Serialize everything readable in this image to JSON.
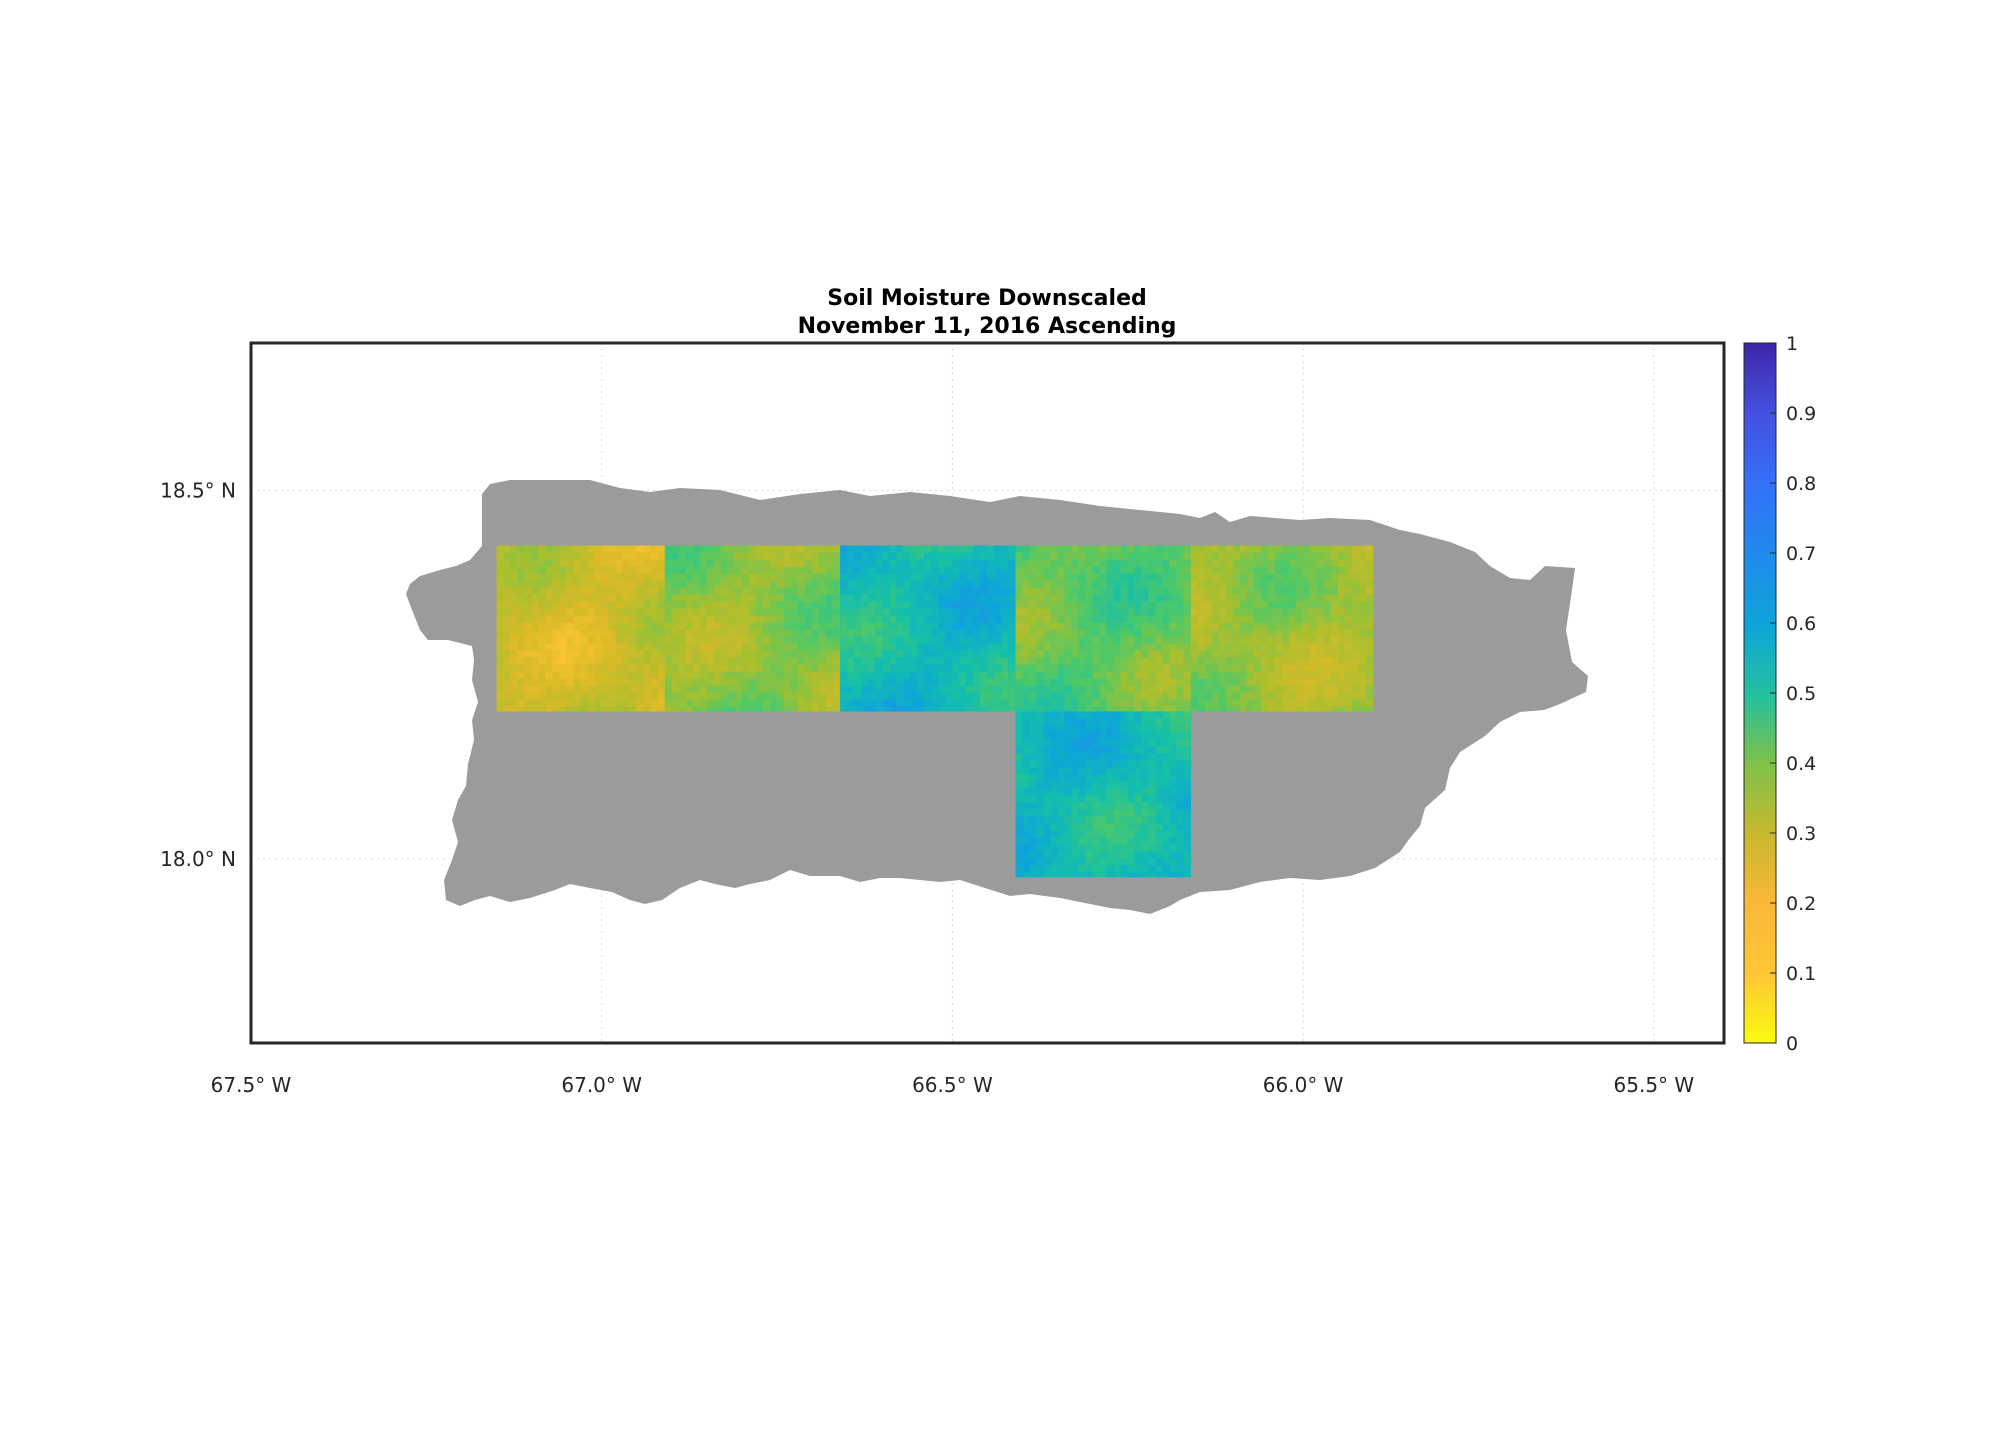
{
  "title": "Soil Moisture Downscaled",
  "subtitle": "November 11, 2016 Ascending",
  "map": {
    "lon_range": [
      -67.5,
      -65.4
    ],
    "lat_range": [
      17.75,
      18.7
    ],
    "x_ticks": [
      {
        "value": -67.5,
        "label": "67.5",
        "hemi": "W"
      },
      {
        "value": -67.0,
        "label": "67.0",
        "hemi": "W"
      },
      {
        "value": -66.5,
        "label": "66.5",
        "hemi": "W"
      },
      {
        "value": -66.0,
        "label": "66.0",
        "hemi": "W"
      },
      {
        "value": -65.5,
        "label": "65.5",
        "hemi": "W"
      }
    ],
    "y_ticks": [
      {
        "value": 18.5,
        "label": "18.5",
        "hemi": "N"
      },
      {
        "value": 18.0,
        "label": "18.0",
        "hemi": "N"
      }
    ],
    "grid": true,
    "land_color": "#9b9b9b",
    "data_tiles": [
      {
        "lon": [
          -67.15,
          -66.91
        ],
        "lat": [
          18.2,
          18.425
        ],
        "mean": 0.23
      },
      {
        "lon": [
          -66.91,
          -66.66
        ],
        "lat": [
          18.2,
          18.425
        ],
        "mean": 0.33
      },
      {
        "lon": [
          -66.66,
          -66.41
        ],
        "lat": [
          18.2,
          18.425
        ],
        "mean": 0.52
      },
      {
        "lon": [
          -66.41,
          -66.16
        ],
        "lat": [
          18.2,
          18.425
        ],
        "mean": 0.38
      },
      {
        "lon": [
          -66.16,
          -65.9
        ],
        "lat": [
          18.2,
          18.425
        ],
        "mean": 0.31
      },
      {
        "lon": [
          -66.41,
          -66.16
        ],
        "lat": [
          17.975,
          18.2
        ],
        "mean": 0.52
      }
    ]
  },
  "colorbar": {
    "min": 0,
    "max": 1,
    "ticks": [
      "0",
      "0.1",
      "0.2",
      "0.3",
      "0.4",
      "0.5",
      "0.6",
      "0.7",
      "0.8",
      "0.9",
      "1"
    ],
    "colormap": [
      "#f9fb0e",
      "#fec634",
      "#dbba27",
      "#a7bf2f",
      "#4fc967",
      "#14bfaa",
      "#0ea4da",
      "#2c86f4",
      "#3f5ff0",
      "#4933d0",
      "#3e26a8"
    ]
  }
}
